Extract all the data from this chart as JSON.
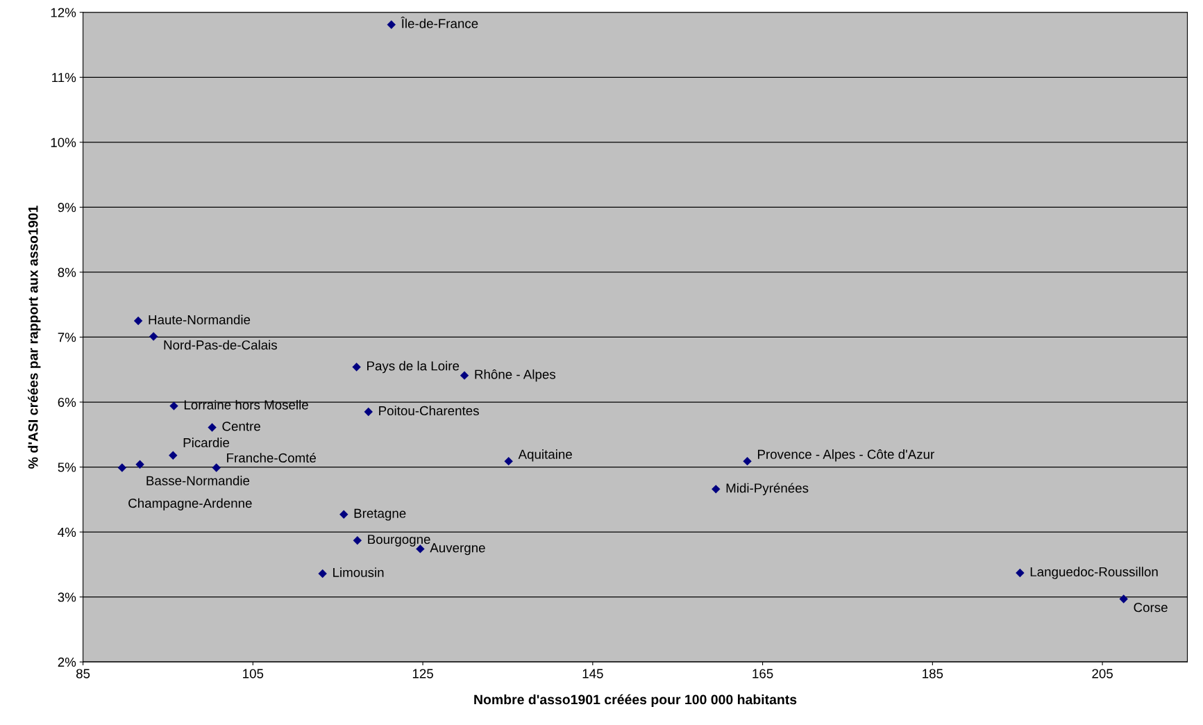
{
  "chart_data": {
    "type": "scatter",
    "xlabel": "Nombre d'asso1901 créées pour 100 000 habitants",
    "ylabel": "% d'ASI créées par rapport aux asso1901",
    "series": [
      {
        "name": "Île-de-France",
        "x": [
          121.3
        ],
        "values": [
          11.81
        ],
        "color": "#000080"
      },
      {
        "name": "Haute-Normandie",
        "x": [
          91.5
        ],
        "values": [
          7.25
        ],
        "color": "#000080"
      },
      {
        "name": "Nord-Pas-de-Calais",
        "x": [
          93.3
        ],
        "values": [
          7.01
        ],
        "color": "#000080"
      },
      {
        "name": "Pays de la Loire",
        "x": [
          117.2
        ],
        "values": [
          6.54
        ],
        "color": "#000080"
      },
      {
        "name": "Rhône - Alpes",
        "x": [
          129.9
        ],
        "values": [
          6.41
        ],
        "color": "#000080"
      },
      {
        "name": "Lorraine hors Moselle",
        "x": [
          95.7
        ],
        "values": [
          5.94
        ],
        "color": "#000080"
      },
      {
        "name": "Poitou-Charentes",
        "x": [
          118.6
        ],
        "values": [
          5.85
        ],
        "color": "#000080"
      },
      {
        "name": "Centre",
        "x": [
          100.2
        ],
        "values": [
          5.61
        ],
        "color": "#000080"
      },
      {
        "name": "Picardie",
        "x": [
          95.6
        ],
        "values": [
          5.18
        ],
        "color": "#000080"
      },
      {
        "name": "Basse-Normandie",
        "x": [
          91.7
        ],
        "values": [
          5.04
        ],
        "color": "#000080"
      },
      {
        "name": "Champagne-Ardenne",
        "x": [
          89.6
        ],
        "values": [
          4.99
        ],
        "color": "#000080"
      },
      {
        "name": "Franche-Comté",
        "x": [
          100.7
        ],
        "values": [
          4.99
        ],
        "color": "#000080"
      },
      {
        "name": "Aquitaine",
        "x": [
          135.1
        ],
        "values": [
          5.09
        ],
        "color": "#000080"
      },
      {
        "name": "Provence - Alpes - Côte d'Azur",
        "x": [
          163.2
        ],
        "values": [
          5.09
        ],
        "color": "#000080"
      },
      {
        "name": "Midi-Pyrénées",
        "x": [
          159.5
        ],
        "values": [
          4.66
        ],
        "color": "#000080"
      },
      {
        "name": "Bretagne",
        "x": [
          115.7
        ],
        "values": [
          4.27
        ],
        "color": "#000080"
      },
      {
        "name": "Bourgogne",
        "x": [
          117.3
        ],
        "values": [
          3.87
        ],
        "color": "#000080"
      },
      {
        "name": "Auvergne",
        "x": [
          124.7
        ],
        "values": [
          3.74
        ],
        "color": "#000080"
      },
      {
        "name": "Limousin",
        "x": [
          113.2
        ],
        "values": [
          3.36
        ],
        "color": "#000080"
      },
      {
        "name": "Languedoc-Roussillon",
        "x": [
          195.3
        ],
        "values": [
          3.37
        ],
        "color": "#000080"
      },
      {
        "name": "Corse",
        "x": [
          207.5
        ],
        "values": [
          2.97
        ],
        "color": "#000080"
      }
    ],
    "marker": "diamond",
    "grid": "y",
    "xlim": [
      85,
      215
    ],
    "xticks": [
      85,
      105,
      125,
      145,
      165,
      185,
      205
    ],
    "ylim": [
      2,
      12
    ],
    "yticks": [
      {
        "value": 2,
        "label": "2%"
      },
      {
        "value": 3,
        "label": "3%"
      },
      {
        "value": 4,
        "label": "4%"
      },
      {
        "value": 5,
        "label": "5%"
      },
      {
        "value": 6,
        "label": "6%"
      },
      {
        "value": 7,
        "label": "7%"
      },
      {
        "value": 8,
        "label": "8%"
      },
      {
        "value": 9,
        "label": "9%"
      },
      {
        "value": 10,
        "label": "10%"
      },
      {
        "value": 11,
        "label": "11%"
      },
      {
        "value": 12,
        "label": "12%"
      }
    ]
  }
}
